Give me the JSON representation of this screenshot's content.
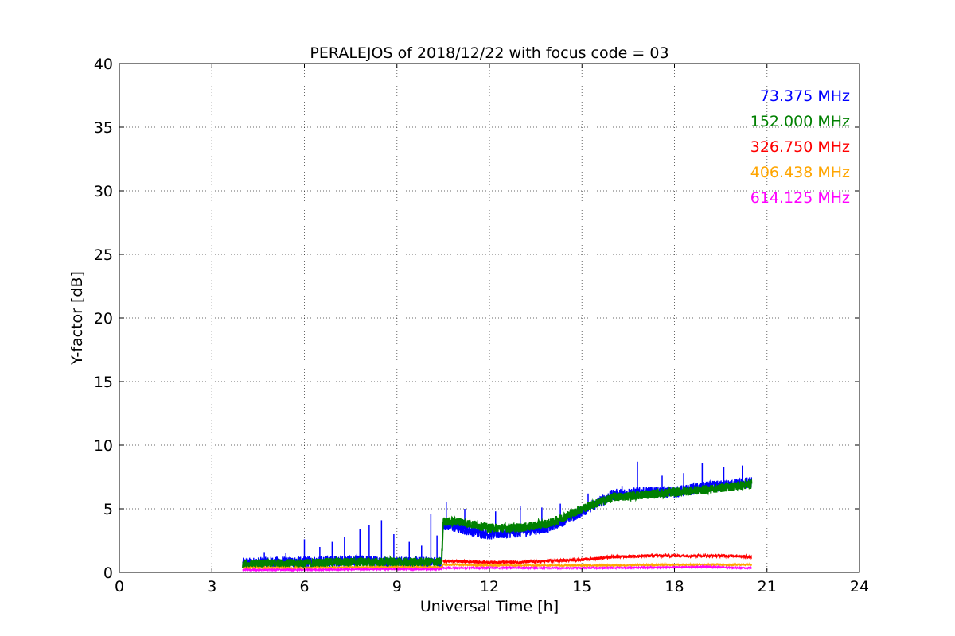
{
  "chart_data": {
    "type": "line",
    "title": "PERALEJOS of 2018/12/22 with focus code = 03",
    "xlabel": "Universal Time [h]",
    "ylabel": "Y-factor [dB]",
    "xlim": [
      0,
      24
    ],
    "ylim": [
      0,
      40
    ],
    "xticks": [
      0,
      3,
      6,
      9,
      12,
      15,
      18,
      21,
      24
    ],
    "yticks": [
      0,
      5,
      10,
      15,
      20,
      25,
      30,
      35,
      40
    ],
    "grid": true,
    "legend_placement": "top-right",
    "series": [
      {
        "name": "73.375 MHz",
        "color": "#0000ff",
        "x": [
          4.0,
          5.0,
          6.0,
          7.0,
          8.0,
          9.0,
          10.0,
          10.45,
          10.5,
          11.0,
          12.0,
          13.0,
          14.0,
          15.0,
          16.0,
          17.0,
          18.0,
          19.0,
          20.0,
          20.5
        ],
        "y": [
          0.7,
          0.8,
          0.8,
          0.9,
          0.9,
          0.8,
          0.8,
          0.8,
          3.8,
          3.5,
          3.0,
          3.2,
          3.6,
          4.8,
          6.1,
          6.3,
          6.3,
          6.7,
          6.9,
          7.1
        ],
        "spikes": [
          [
            4.7,
            1.6
          ],
          [
            5.4,
            1.5
          ],
          [
            6.0,
            2.6
          ],
          [
            6.5,
            2.0
          ],
          [
            6.9,
            2.4
          ],
          [
            7.3,
            2.8
          ],
          [
            7.8,
            3.4
          ],
          [
            8.1,
            3.7
          ],
          [
            8.5,
            4.1
          ],
          [
            8.9,
            3.0
          ],
          [
            9.4,
            2.4
          ],
          [
            9.8,
            2.1
          ],
          [
            10.1,
            4.6
          ],
          [
            10.3,
            2.9
          ],
          [
            10.6,
            5.5
          ],
          [
            11.2,
            5.0
          ],
          [
            12.2,
            4.8
          ],
          [
            13.0,
            5.2
          ],
          [
            13.7,
            5.1
          ],
          [
            14.3,
            5.4
          ],
          [
            15.2,
            6.2
          ],
          [
            16.3,
            6.8
          ],
          [
            16.8,
            8.7
          ],
          [
            17.6,
            7.6
          ],
          [
            18.3,
            7.8
          ],
          [
            18.9,
            8.6
          ],
          [
            19.6,
            8.3
          ],
          [
            20.2,
            8.4
          ]
        ]
      },
      {
        "name": "152.000 MHz",
        "color": "#008000",
        "x": [
          4.0,
          5.0,
          6.0,
          7.0,
          8.0,
          9.0,
          10.0,
          10.45,
          10.5,
          11.0,
          12.0,
          13.0,
          14.0,
          15.0,
          16.0,
          17.0,
          18.0,
          19.0,
          20.0,
          20.5
        ],
        "y": [
          0.6,
          0.7,
          0.7,
          0.8,
          0.8,
          0.8,
          0.8,
          0.8,
          4.0,
          4.0,
          3.5,
          3.5,
          3.9,
          5.0,
          5.9,
          6.1,
          6.3,
          6.5,
          6.8,
          6.9
        ]
      },
      {
        "name": "326.750 MHz",
        "color": "#ff0000",
        "x": [
          10.5,
          12.0,
          13.0,
          14.0,
          15.0,
          16.0,
          17.0,
          18.0,
          19.0,
          20.0,
          20.5
        ],
        "y": [
          0.9,
          0.8,
          0.8,
          0.9,
          1.0,
          1.2,
          1.3,
          1.3,
          1.3,
          1.3,
          1.2
        ]
      },
      {
        "name": "406.438 MHz",
        "color": "#ffa500",
        "x": [
          4.0,
          6.0,
          8.0,
          10.45,
          10.5,
          12.0,
          14.0,
          16.0,
          18.0,
          20.0,
          20.5
        ],
        "y": [
          0.35,
          0.35,
          0.4,
          0.4,
          0.6,
          0.55,
          0.55,
          0.55,
          0.6,
          0.6,
          0.6
        ]
      },
      {
        "name": "614.125 MHz",
        "color": "#ff00ff",
        "x": [
          4.0,
          6.0,
          8.0,
          10.45,
          10.5,
          12.0,
          14.0,
          16.0,
          18.0,
          19.0,
          20.0,
          20.5
        ],
        "y": [
          0.2,
          0.2,
          0.25,
          0.25,
          0.35,
          0.35,
          0.35,
          0.35,
          0.4,
          0.45,
          0.35,
          0.35
        ]
      }
    ]
  }
}
